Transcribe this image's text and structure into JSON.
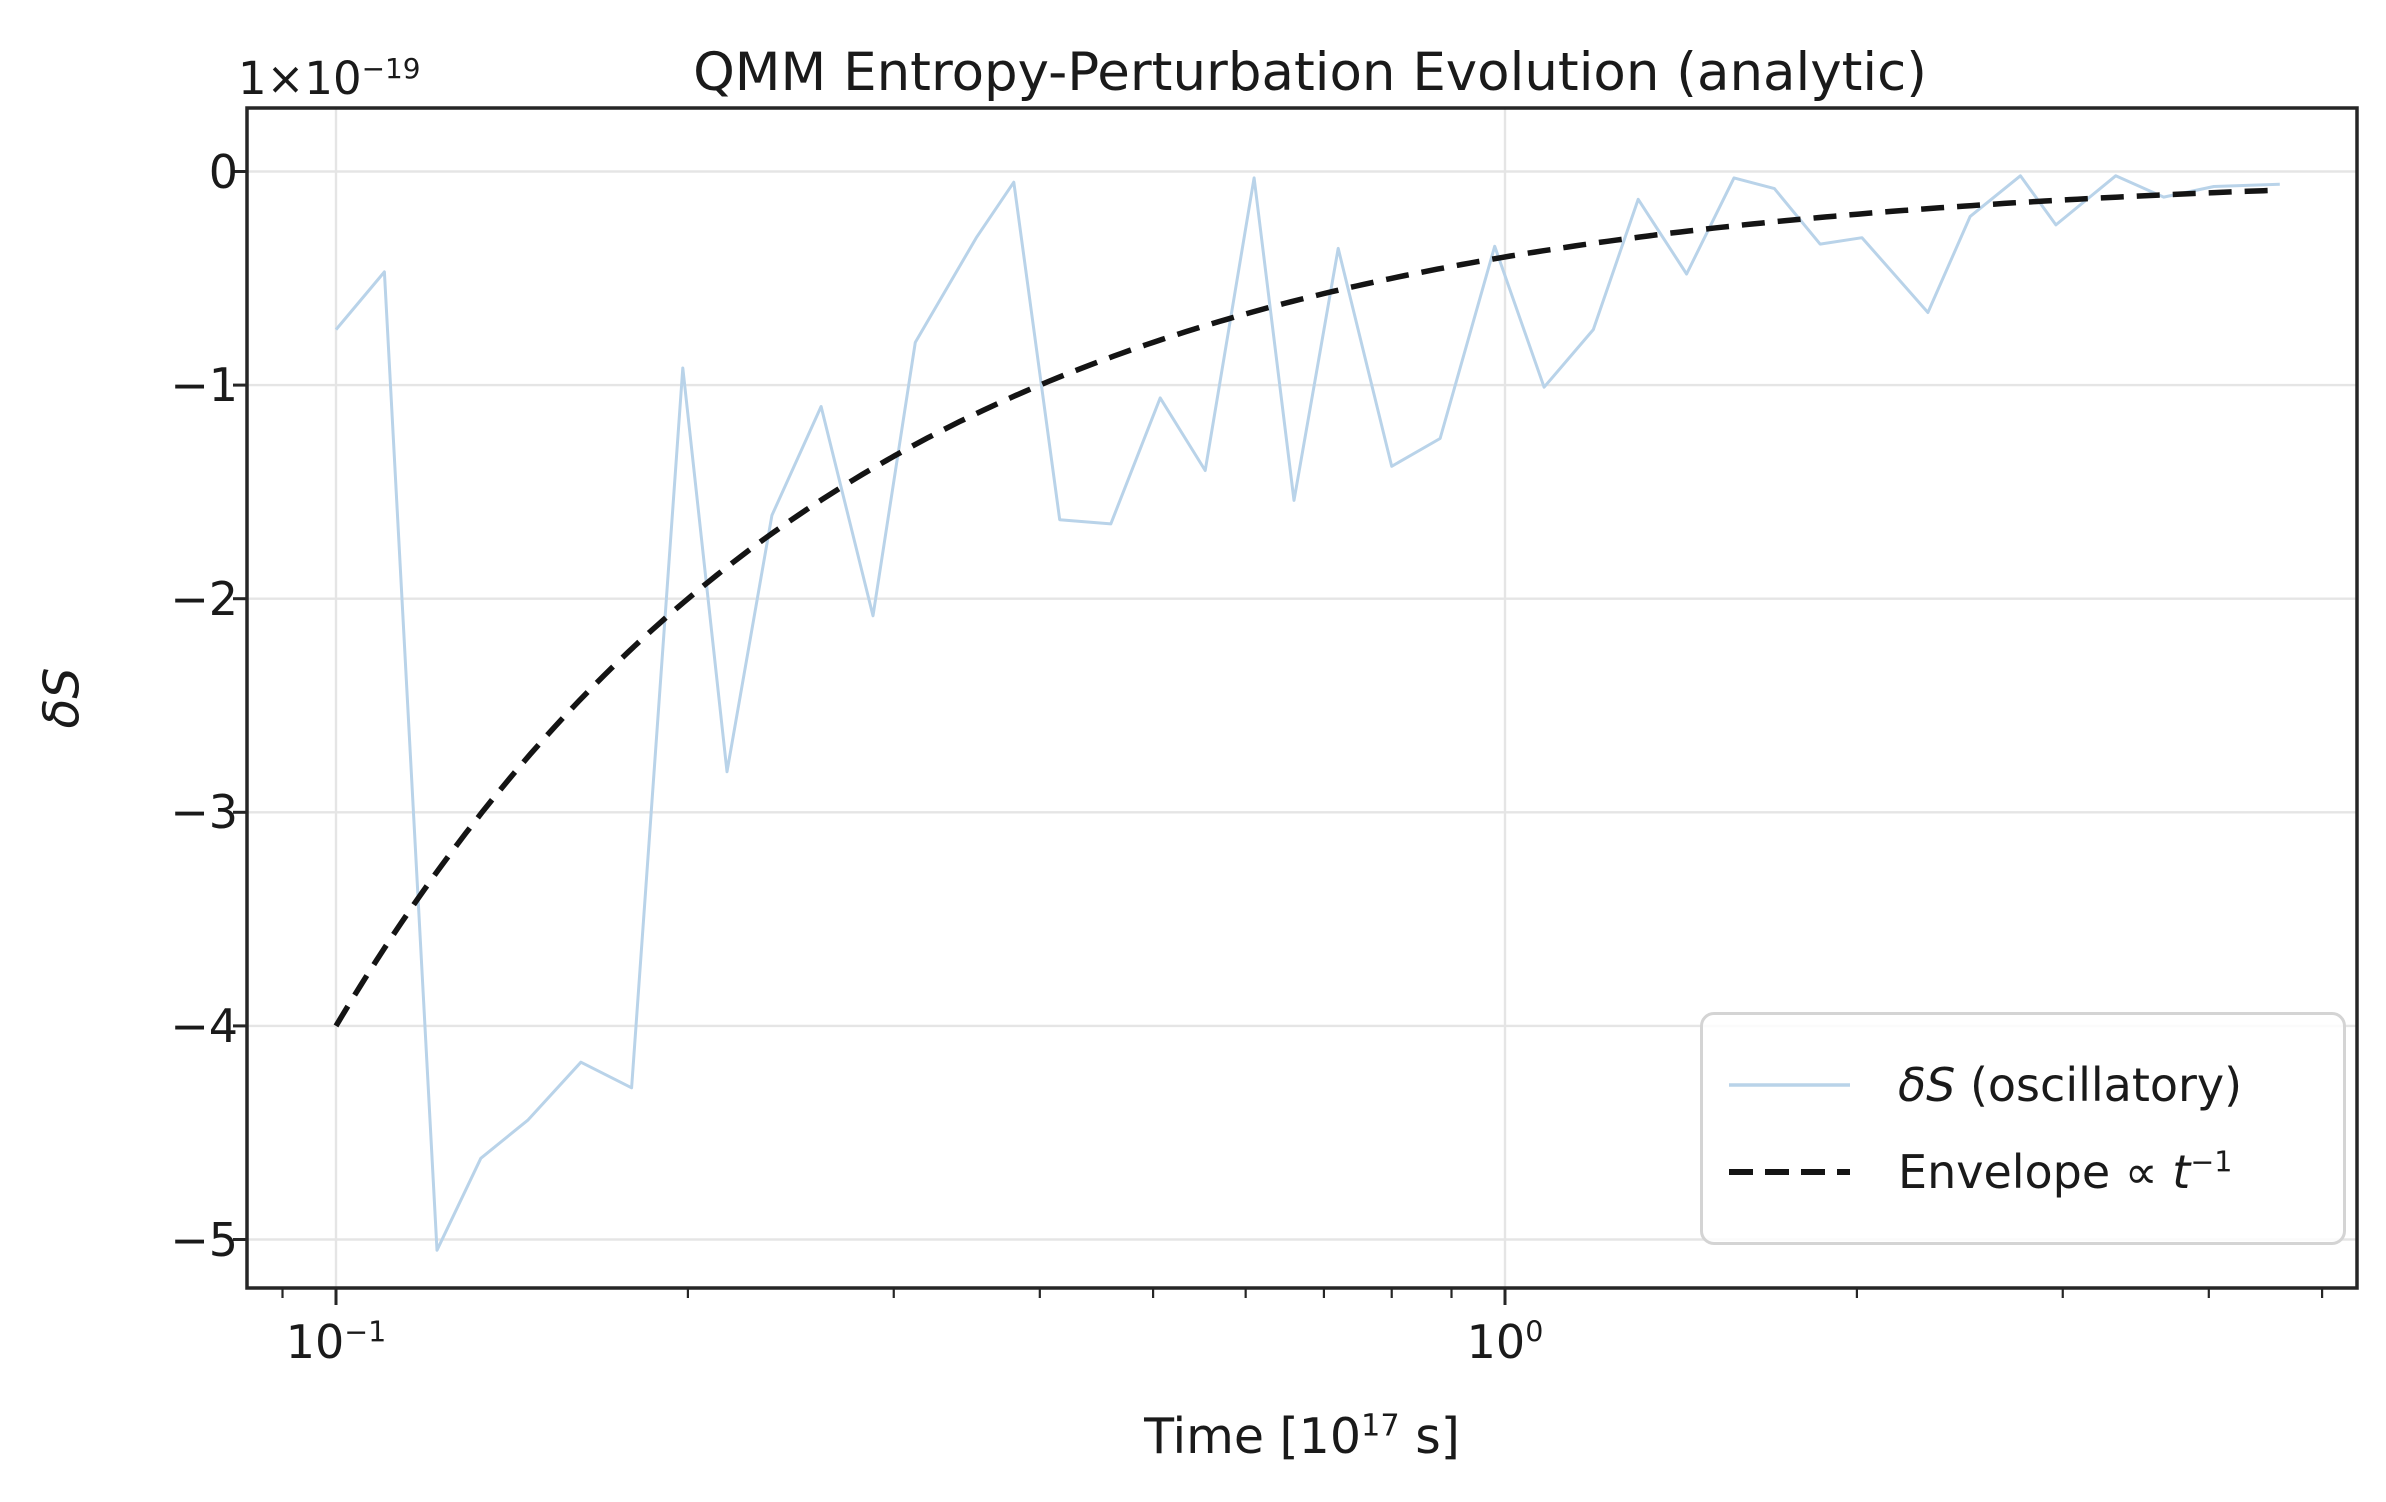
{
  "figure": {
    "title": "QMM Entropy-Perturbation Evolution (analytic)",
    "offset_text": {
      "base": "1×10",
      "exp": "−19"
    },
    "xlabel": {
      "pre": "Time [10",
      "exp": "17",
      "post": " s]"
    },
    "ylabel": "δS",
    "colors": {
      "background": "#ffffff",
      "oscillatory_line": "#b9d3e9",
      "envelope_line": "#141414",
      "grid": "#e5e5e5",
      "spine": "#262626",
      "text": "#1a1a1a",
      "legend_border": "#d4d4d4"
    }
  },
  "legend": {
    "entries": [
      {
        "label_math": "δS",
        "label_rest": " (oscillatory)"
      },
      {
        "label_pre": "Envelope ∝ ",
        "label_var": "t",
        "label_exp": "−1"
      }
    ]
  },
  "chart_data": {
    "type": "line",
    "title": "QMM Entropy-Perturbation Evolution (analytic)",
    "xlabel": "Time [10^17 s]",
    "ylabel": "δS (units of 10^−19)",
    "x_scale": "log",
    "grid": "major-only",
    "legend_position": "lower right",
    "xlim": [
      0.084,
      5.36
    ],
    "ylim": [
      -5.23,
      0.3
    ],
    "yticks": {
      "values": [
        0,
        -1,
        -2,
        -3,
        -4,
        -5
      ],
      "labels": [
        "0",
        "−1",
        "−2",
        "−3",
        "−4",
        "−5"
      ]
    },
    "xticks_major": [
      {
        "value": 0.1,
        "base": "10",
        "exp": "−1"
      },
      {
        "value": 1.0,
        "base": "10",
        "exp": "0"
      }
    ],
    "xticks_minor": [
      0.09,
      0.2,
      0.3,
      0.4,
      0.5,
      0.6,
      0.7,
      0.8,
      0.9,
      2,
      3,
      4,
      5
    ],
    "series": [
      {
        "name": "δS (oscillatory)",
        "style": "solid",
        "color": "#b9d3e9",
        "points": {
          "t": [
            0.1,
            0.11,
            0.122,
            0.133,
            0.146,
            0.162,
            0.179,
            0.198,
            0.216,
            0.236,
            0.26,
            0.288,
            0.313,
            0.353,
            0.38,
            0.416,
            0.46,
            0.507,
            0.554,
            0.61,
            0.66,
            0.72,
            0.8,
            0.88,
            0.98,
            1.08,
            1.19,
            1.3,
            1.43,
            1.57,
            1.7,
            1.86,
            2.02,
            2.3,
            2.5,
            2.76,
            2.96,
            3.33,
            3.66,
            4.04,
            4.6
          ],
          "dS": [
            -0.74,
            -0.47,
            -5.05,
            -4.62,
            -4.44,
            -4.17,
            -4.29,
            -0.92,
            -2.81,
            -1.61,
            -1.1,
            -2.08,
            -0.8,
            -0.31,
            -0.05,
            -1.63,
            -1.65,
            -1.06,
            -1.4,
            -0.03,
            -1.54,
            -0.36,
            -1.38,
            -1.25,
            -0.35,
            -1.01,
            -0.74,
            -0.13,
            -0.48,
            -0.03,
            -0.08,
            -0.34,
            -0.31,
            -0.66,
            -0.21,
            -0.02,
            -0.25,
            -0.02,
            -0.12,
            -0.07,
            -0.06
          ]
        }
      },
      {
        "name": "Envelope ∝ t^−1",
        "style": "dashed",
        "color": "#141414",
        "formula": "dS(t) = -0.4 / t",
        "coefficient": -0.4,
        "exponent": -1,
        "t_range": [
          0.1,
          4.6
        ]
      }
    ],
    "units": {
      "t": "10^17 s",
      "dS": "10^−19"
    }
  }
}
